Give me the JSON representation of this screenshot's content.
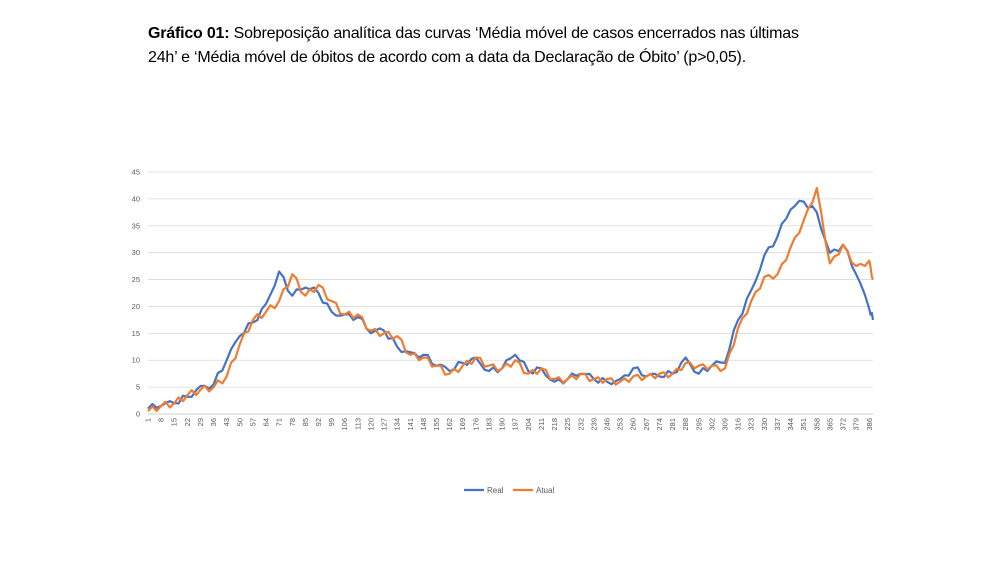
{
  "title": {
    "bold": "Gráfico 01:",
    "line1": " Sobreposição analítica das curvas ‘Média móvel de casos encerrados nas últimas",
    "line2": "24h’ e ‘Média móvel de óbitos de acordo com a data da Declaração de Óbito’ (p>0,05)."
  },
  "chart_data": {
    "type": "line",
    "title": "",
    "xlabel": "",
    "ylabel": "",
    "ylim": [
      0,
      45
    ],
    "yticks": [
      0,
      5,
      10,
      15,
      20,
      25,
      30,
      35,
      40,
      45
    ],
    "xlim": [
      1,
      388
    ],
    "xticks": [
      "1",
      "8",
      "15",
      "22",
      "29",
      "36",
      "43",
      "50",
      "57",
      "64",
      "71",
      "78",
      "85",
      "92",
      "99",
      "106",
      "113",
      "120",
      "127",
      "134",
      "141",
      "148",
      "155",
      "162",
      "169",
      "176",
      "183",
      "190",
      "197",
      "204",
      "211",
      "218",
      "225",
      "232",
      "239",
      "246",
      "253",
      "260",
      "267",
      "274",
      "281",
      "288",
      "295",
      "302",
      "309",
      "316",
      "323",
      "330",
      "337",
      "344",
      "351",
      "358",
      "365",
      "372",
      "379",
      "386"
    ],
    "grid": true,
    "legend": "bottom",
    "x": [
      1,
      8,
      15,
      22,
      29,
      36,
      43,
      50,
      57,
      64,
      71,
      78,
      85,
      92,
      99,
      106,
      113,
      120,
      127,
      134,
      141,
      148,
      155,
      162,
      169,
      176,
      183,
      190,
      197,
      204,
      211,
      218,
      225,
      232,
      239,
      246,
      253,
      260,
      267,
      274,
      281,
      288,
      295,
      302,
      309,
      316,
      323,
      330,
      337,
      344,
      351,
      358,
      365,
      372,
      379,
      386,
      388
    ],
    "series": [
      {
        "name": "Real",
        "color": "#4472C4",
        "values": [
          1,
          1.5,
          2,
          3.2,
          5.2,
          5.5,
          10,
          14.5,
          17,
          20.5,
          26.5,
          22,
          23.5,
          22.5,
          19,
          18.5,
          18,
          15,
          15.5,
          12.5,
          11.5,
          11,
          9,
          8,
          9.5,
          10.5,
          8,
          8.5,
          11,
          8,
          8.5,
          6,
          6.5,
          7.5,
          6.5,
          6,
          6.5,
          8.5,
          7,
          7,
          7.5,
          10.5,
          7.5,
          9,
          9.5,
          17.5,
          23,
          29.5,
          33,
          38,
          39.5,
          37.5,
          30,
          31.5,
          26,
          19.5,
          17.5
        ]
      },
      {
        "name": "Atual",
        "color": "#ED7D31",
        "values": [
          0.5,
          1.5,
          2,
          3.5,
          4.5,
          5,
          7,
          13,
          17.5,
          19,
          21,
          26,
          22,
          24,
          21,
          18.5,
          18.5,
          15.5,
          15,
          14.5,
          11,
          10.5,
          9,
          7.5,
          9,
          10.5,
          9,
          8.5,
          10,
          7.5,
          8.5,
          6.5,
          6.5,
          7.5,
          6.5,
          6.5,
          6,
          7,
          7,
          7.5,
          7.5,
          9.5,
          9,
          9,
          8.5,
          16,
          21,
          25.5,
          26,
          31,
          36,
          42,
          28,
          31.5,
          27.5,
          28.5,
          25
        ]
      }
    ]
  }
}
